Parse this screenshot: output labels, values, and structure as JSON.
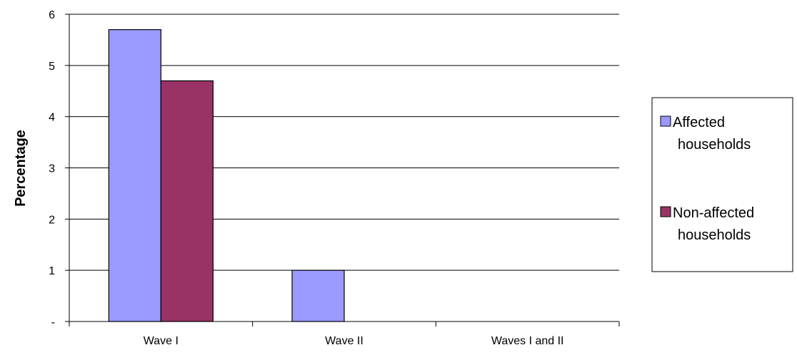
{
  "chart_data": {
    "type": "bar",
    "categories": [
      "Wave I",
      "Wave II",
      "Waves I and II"
    ],
    "series": [
      {
        "name": "Affected households",
        "legend_lines": [
          "Affected",
          "households"
        ],
        "color": "#9999ff",
        "values": [
          5.7,
          1.0,
          0
        ]
      },
      {
        "name": "Non-affected households",
        "legend_lines": [
          "Non-affected",
          "households"
        ],
        "color": "#993366",
        "values": [
          4.7,
          0,
          0
        ]
      }
    ],
    "title": "",
    "xlabel": "",
    "ylabel": "Percentage",
    "ylim": [
      0,
      6
    ],
    "y_ticks": [
      {
        "value": 0,
        "label": "-"
      },
      {
        "value": 1,
        "label": "1"
      },
      {
        "value": 2,
        "label": "2"
      },
      {
        "value": 3,
        "label": "3"
      },
      {
        "value": 4,
        "label": "4"
      },
      {
        "value": 5,
        "label": "5"
      },
      {
        "value": 6,
        "label": "6"
      }
    ],
    "grid": true,
    "legend_position": "right"
  }
}
